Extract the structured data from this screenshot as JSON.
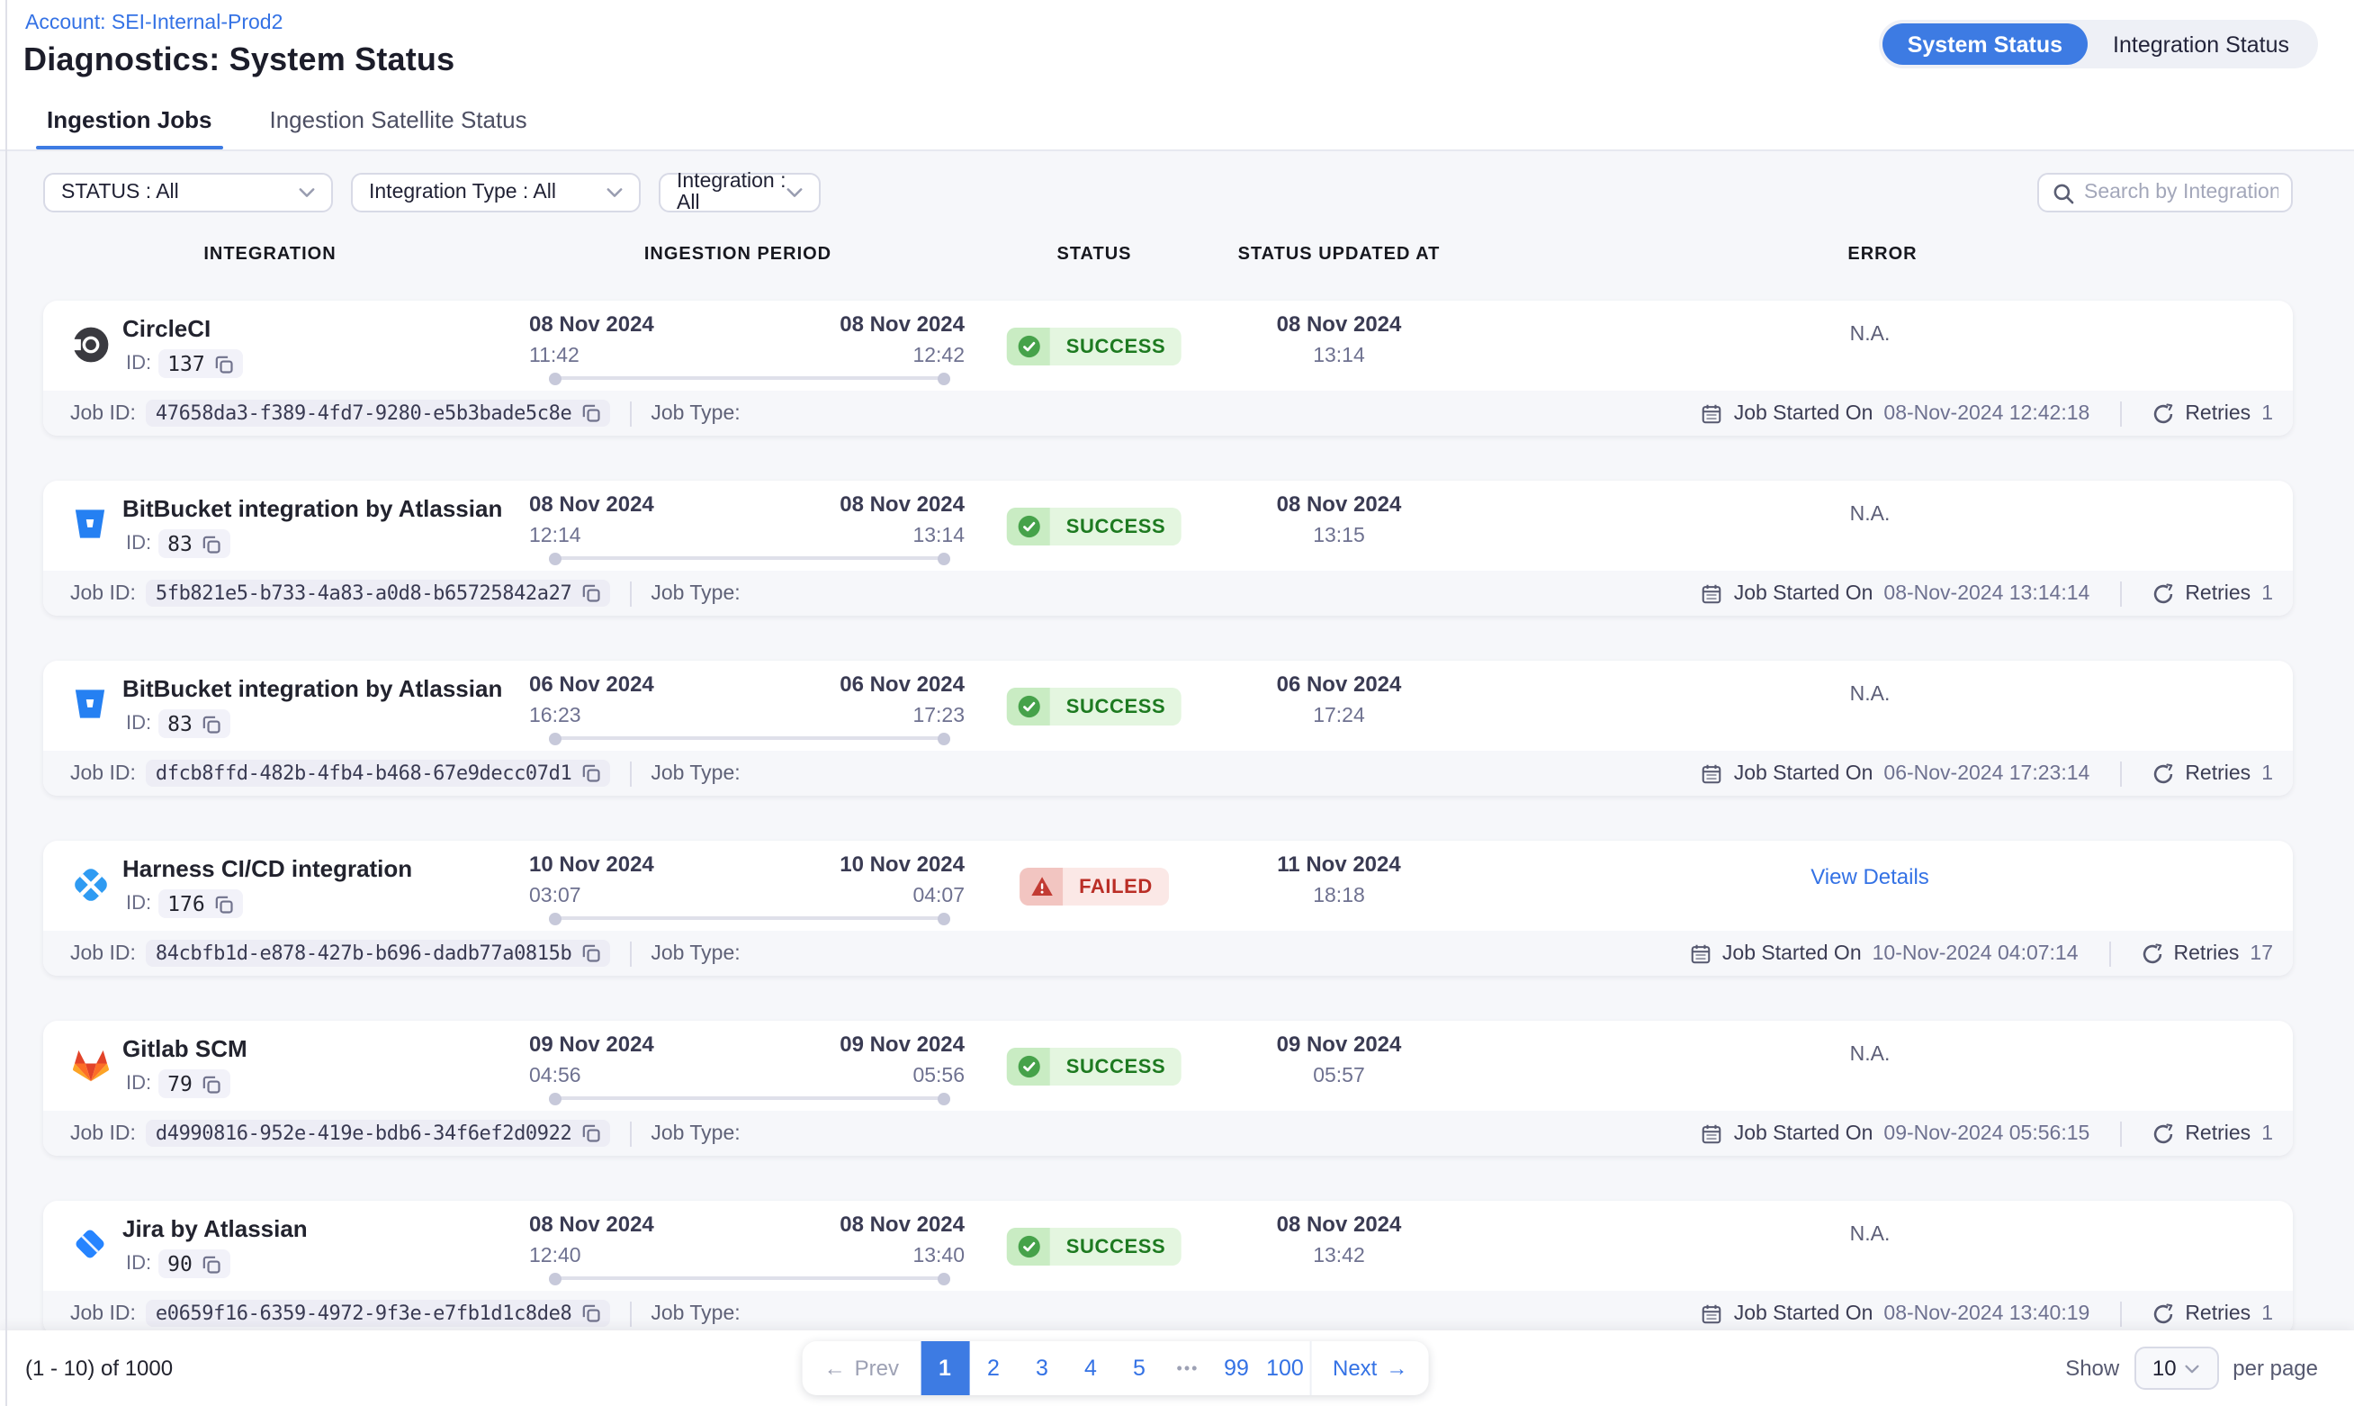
{
  "header": {
    "account_link": "Account: SEI-Internal-Prod2",
    "page_title": "Diagnostics: System Status",
    "view_toggle": {
      "system_status": "System Status",
      "integration_status": "Integration Status"
    }
  },
  "tabs": [
    {
      "label": "Ingestion Jobs",
      "active": true
    },
    {
      "label": "Ingestion Satellite Status",
      "active": false
    }
  ],
  "filters": [
    {
      "label": "STATUS : All"
    },
    {
      "label": "Integration Type : All"
    },
    {
      "label": "Integration : All"
    }
  ],
  "search": {
    "placeholder": "Search by Integration Name"
  },
  "table": {
    "columns": [
      "INTEGRATION",
      "INGESTION PERIOD",
      "STATUS",
      "STATUS UPDATED AT",
      "ERROR"
    ],
    "labels": {
      "id": "ID:",
      "job_id": "Job ID:",
      "job_type": "Job Type:",
      "job_started_on": "Job Started On",
      "retries": "Retries"
    },
    "rows": [
      {
        "integration": "CircleCI",
        "icon": "circleci",
        "id": "137",
        "period_start_date": "08 Nov 2024",
        "period_start_time": "11:42",
        "period_end_date": "08 Nov 2024",
        "period_end_time": "12:42",
        "status": "SUCCESS",
        "updated_date": "08 Nov 2024",
        "updated_time": "13:14",
        "error": "N.A.",
        "error_type": "text",
        "job_id": "47658da3-f389-4fd7-9280-e5b3bade5c8e",
        "job_started_on": "08-Nov-2024 12:42:18",
        "retries": "1"
      },
      {
        "integration": "BitBucket integration by Atlassian",
        "icon": "bitbucket",
        "id": "83",
        "period_start_date": "08 Nov 2024",
        "period_start_time": "12:14",
        "period_end_date": "08 Nov 2024",
        "period_end_time": "13:14",
        "status": "SUCCESS",
        "updated_date": "08 Nov 2024",
        "updated_time": "13:15",
        "error": "N.A.",
        "error_type": "text",
        "job_id": "5fb821e5-b733-4a83-a0d8-b65725842a27",
        "job_started_on": "08-Nov-2024 13:14:14",
        "retries": "1"
      },
      {
        "integration": "BitBucket integration by Atlassian",
        "icon": "bitbucket",
        "id": "83",
        "period_start_date": "06 Nov 2024",
        "period_start_time": "16:23",
        "period_end_date": "06 Nov 2024",
        "period_end_time": "17:23",
        "status": "SUCCESS",
        "updated_date": "06 Nov 2024",
        "updated_time": "17:24",
        "error": "N.A.",
        "error_type": "text",
        "job_id": "dfcb8ffd-482b-4fb4-b468-67e9decc07d1",
        "job_started_on": "06-Nov-2024 17:23:14",
        "retries": "1"
      },
      {
        "integration": "Harness CI/CD integration",
        "icon": "harness",
        "id": "176",
        "period_start_date": "10 Nov 2024",
        "period_start_time": "03:07",
        "period_end_date": "10 Nov 2024",
        "period_end_time": "04:07",
        "status": "FAILED",
        "updated_date": "11 Nov 2024",
        "updated_time": "18:18",
        "error": "View Details",
        "error_type": "link",
        "job_id": "84cbfb1d-e878-427b-b696-dadb77a0815b",
        "job_started_on": "10-Nov-2024 04:07:14",
        "retries": "17"
      },
      {
        "integration": "Gitlab SCM",
        "icon": "gitlab",
        "id": "79",
        "period_start_date": "09 Nov 2024",
        "period_start_time": "04:56",
        "period_end_date": "09 Nov 2024",
        "period_end_time": "05:56",
        "status": "SUCCESS",
        "updated_date": "09 Nov 2024",
        "updated_time": "05:57",
        "error": "N.A.",
        "error_type": "text",
        "job_id": "d4990816-952e-419e-bdb6-34f6ef2d0922",
        "job_started_on": "09-Nov-2024 05:56:15",
        "retries": "1"
      },
      {
        "integration": "Jira by Atlassian",
        "icon": "jira",
        "id": "90",
        "period_start_date": "08 Nov 2024",
        "period_start_time": "12:40",
        "period_end_date": "08 Nov 2024",
        "period_end_time": "13:40",
        "status": "SUCCESS",
        "updated_date": "08 Nov 2024",
        "updated_time": "13:42",
        "error": "N.A.",
        "error_type": "text",
        "job_id": "e0659f16-6359-4972-9f3e-e7fb1d1c8de8",
        "job_started_on": "08-Nov-2024 13:40:19",
        "retries": "1"
      }
    ]
  },
  "pagination": {
    "range_text": "(1 - 10) of 1000",
    "prev_label": "Prev",
    "next_label": "Next",
    "pages": [
      "1",
      "2",
      "3",
      "4",
      "5",
      "•••",
      "99",
      "100"
    ],
    "active_page": "1",
    "show_label": "Show",
    "page_size": "10",
    "per_page_label": "per page"
  },
  "colors": {
    "accent_blue": "#3d7be3",
    "link_blue": "#3472e5",
    "success_green": "#1d7a20",
    "failed_red": "#ba2e26"
  }
}
